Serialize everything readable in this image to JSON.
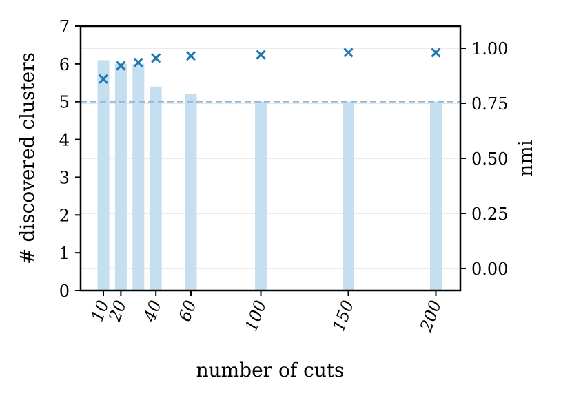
{
  "chart_data": {
    "type": "bar",
    "xlabel": "number of cuts",
    "ylabel": "# discovered clusters",
    "y2label": "nmi",
    "x": [
      10,
      20,
      30,
      40,
      60,
      100,
      150,
      200
    ],
    "xticks": [
      "10",
      "20",
      "40",
      "60",
      "100",
      "150",
      "200"
    ],
    "xtick_values": [
      10,
      20,
      40,
      60,
      100,
      150,
      200
    ],
    "xlim": [
      -3,
      214
    ],
    "ylim": [
      0,
      7
    ],
    "yticks": [
      "0",
      "1",
      "2",
      "3",
      "4",
      "5",
      "6",
      "7"
    ],
    "y2lim": [
      -0.1,
      1.1
    ],
    "y2ticks": [
      "0.00",
      "0.25",
      "0.50",
      "0.75",
      "1.00"
    ],
    "y2tick_values": [
      0,
      0.25,
      0.5,
      0.75,
      1.0
    ],
    "series": [
      {
        "kind": "bar",
        "axis": "left",
        "values": [
          6.1,
          6.0,
          6.0,
          5.4,
          5.2,
          5.0,
          5.0,
          5.0
        ],
        "color": "#c6dff0"
      },
      {
        "kind": "scatter",
        "axis": "right",
        "marker": "x",
        "values": [
          0.86,
          0.92,
          0.935,
          0.955,
          0.965,
          0.97,
          0.98,
          0.98
        ],
        "color": "#1f77b4"
      }
    ],
    "reference_line": {
      "axis": "left",
      "value": 5,
      "style": "dashed",
      "color": "#8fb8d8"
    },
    "grid": "horizontal, right axis"
  }
}
